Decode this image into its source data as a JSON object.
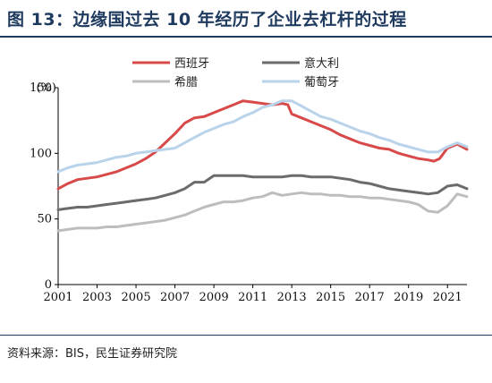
{
  "title": "图 13：边缘国过去 10 年经历了企业去杠杆的过程",
  "source": "资料来源：BIS，民生证券研究院",
  "chart_data": {
    "type": "line",
    "unit_label": "(%)",
    "xlim": [
      2001,
      2022
    ],
    "ylim": [
      0,
      150
    ],
    "x_ticks": [
      2001,
      2003,
      2005,
      2007,
      2009,
      2011,
      2013,
      2015,
      2017,
      2019,
      2021
    ],
    "y_ticks": [
      0,
      50,
      100,
      150
    ],
    "legend_position": "top",
    "series": [
      {
        "name": "西班牙",
        "color": "#d84a4a",
        "x": [
          2001,
          2001.5,
          2002,
          2002.5,
          2003,
          2003.5,
          2004,
          2004.5,
          2005,
          2005.5,
          2006,
          2006.5,
          2007,
          2007.5,
          2008,
          2008.5,
          2009,
          2009.5,
          2010,
          2010.5,
          2011,
          2011.5,
          2012,
          2012.5,
          2012.8,
          2013,
          2013.5,
          2014,
          2014.5,
          2015,
          2015.5,
          2016,
          2016.5,
          2017,
          2017.5,
          2018,
          2018.5,
          2019,
          2019.5,
          2020,
          2020.3,
          2020.6,
          2021,
          2021.5,
          2022
        ],
        "y": [
          73,
          77,
          80,
          81,
          82,
          84,
          86,
          89,
          92,
          96,
          101,
          108,
          115,
          123,
          127,
          128,
          131,
          134,
          137,
          140,
          139,
          138,
          137,
          138,
          137,
          130,
          127,
          124,
          121,
          118,
          114,
          111,
          108,
          106,
          104,
          103,
          100,
          98,
          96,
          95,
          94,
          96,
          104,
          107,
          103
        ]
      },
      {
        "name": "意大利",
        "color": "#6b6b6b",
        "x": [
          2001,
          2001.5,
          2002,
          2002.5,
          2003,
          2003.5,
          2004,
          2004.5,
          2005,
          2005.5,
          2006,
          2006.5,
          2007,
          2007.5,
          2008,
          2008.5,
          2009,
          2009.5,
          2010,
          2010.5,
          2011,
          2011.5,
          2012,
          2012.5,
          2013,
          2013.5,
          2014,
          2014.5,
          2015,
          2015.5,
          2016,
          2016.5,
          2017,
          2017.5,
          2018,
          2018.5,
          2019,
          2019.5,
          2020,
          2020.5,
          2021,
          2021.5,
          2022
        ],
        "y": [
          57,
          58,
          59,
          59,
          60,
          61,
          62,
          63,
          64,
          65,
          66,
          68,
          70,
          73,
          78,
          78,
          83,
          83,
          83,
          83,
          82,
          82,
          82,
          82,
          83,
          83,
          82,
          82,
          82,
          81,
          80,
          78,
          77,
          75,
          73,
          72,
          71,
          70,
          69,
          70,
          75,
          76,
          73
        ]
      },
      {
        "name": "希腊",
        "color": "#bdbdbd",
        "x": [
          2001,
          2001.5,
          2002,
          2002.5,
          2003,
          2003.5,
          2004,
          2004.5,
          2005,
          2005.5,
          2006,
          2006.5,
          2007,
          2007.5,
          2008,
          2008.5,
          2009,
          2009.5,
          2010,
          2010.5,
          2011,
          2011.5,
          2012,
          2012.5,
          2013,
          2013.5,
          2014,
          2014.5,
          2015,
          2015.5,
          2016,
          2016.5,
          2017,
          2017.5,
          2018,
          2018.5,
          2019,
          2019.5,
          2020,
          2020.5,
          2021,
          2021.5,
          2022
        ],
        "y": [
          41,
          42,
          43,
          43,
          43,
          44,
          44,
          45,
          46,
          47,
          48,
          49,
          51,
          53,
          56,
          59,
          61,
          63,
          63,
          64,
          66,
          67,
          70,
          68,
          69,
          70,
          69,
          69,
          68,
          68,
          67,
          67,
          66,
          66,
          65,
          64,
          63,
          61,
          56,
          55,
          60,
          69,
          67
        ]
      },
      {
        "name": "葡萄牙",
        "color": "#b9d3ea",
        "x": [
          2001,
          2001.5,
          2002,
          2002.5,
          2003,
          2003.5,
          2004,
          2004.5,
          2005,
          2005.5,
          2006,
          2006.5,
          2007,
          2007.5,
          2008,
          2008.5,
          2009,
          2009.5,
          2010,
          2010.5,
          2011,
          2011.5,
          2012,
          2012.5,
          2013,
          2013.5,
          2014,
          2014.5,
          2015,
          2015.5,
          2016,
          2016.5,
          2017,
          2017.5,
          2018,
          2018.5,
          2019,
          2019.5,
          2020,
          2020.5,
          2021,
          2021.5,
          2022
        ],
        "y": [
          86,
          89,
          91,
          92,
          93,
          95,
          97,
          98,
          100,
          101,
          102,
          103,
          104,
          108,
          112,
          116,
          119,
          122,
          124,
          128,
          131,
          135,
          137,
          140,
          140,
          136,
          132,
          128,
          126,
          123,
          120,
          117,
          115,
          112,
          110,
          107,
          105,
          103,
          101,
          101,
          105,
          108,
          105
        ]
      }
    ]
  }
}
